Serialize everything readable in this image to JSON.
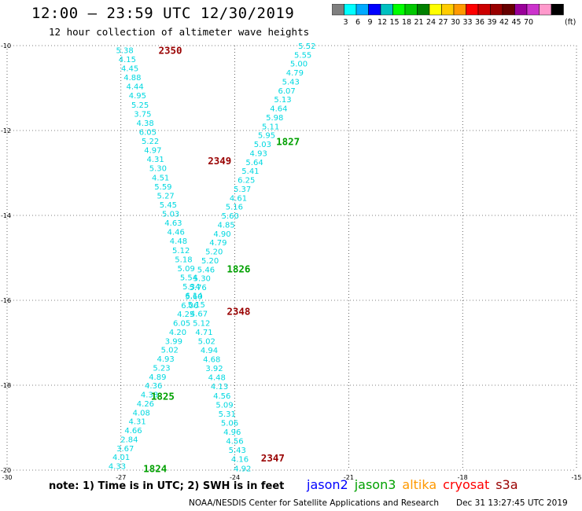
{
  "header": {
    "title": "12:00 – 23:59 UTC 12/30/2019",
    "subtitle": "12 hour collection of altimeter wave heights"
  },
  "colorbar": {
    "colors": [
      "#7f7f7f",
      "#00ffff",
      "#00aaff",
      "#0000ff",
      "#00c0c0",
      "#00ff00",
      "#00c800",
      "#008000",
      "#ffff00",
      "#ffcc00",
      "#ff9900",
      "#ff0000",
      "#cc0000",
      "#990000",
      "#660000",
      "#990099",
      "#cc33cc",
      "#ff99cc",
      "#000000"
    ],
    "labels": [
      "3",
      "6",
      "9",
      "12",
      "15",
      "18",
      "21",
      "24",
      "27",
      "30",
      "33",
      "36",
      "39",
      "42",
      "45",
      "70"
    ],
    "unit": "(ft)"
  },
  "note": "note: 1) Time is in UTC; 2) SWH is in feet",
  "legend": [
    {
      "name": "jason2",
      "color": "#0000ff"
    },
    {
      "name": "jason3",
      "color": "#00a000"
    },
    {
      "name": "altika",
      "color": "#ff9900"
    },
    {
      "name": "cryosat",
      "color": "#ff0000"
    },
    {
      "name": "s3a",
      "color": "#990000"
    }
  ],
  "footer": {
    "credit": "NOAA/NESDIS Center for Satellite Applications and Research",
    "timestamp": "Dec 31 13:27:45 UTC 2019"
  },
  "chart_data": {
    "type": "scatter",
    "xlim": [
      -30,
      -15
    ],
    "ylim": [
      -20,
      -10
    ],
    "xticks": [
      "-30",
      "-27",
      "-24",
      "-21",
      "-18",
      "-15"
    ],
    "yticks": [
      "-10",
      "-12",
      "-14",
      "-16",
      "-18",
      "-20"
    ],
    "grid": true,
    "times": [
      {
        "label": "2350",
        "x": -25.7,
        "y": -10.1,
        "color": "#990000"
      },
      {
        "label": "1827",
        "x": -22.6,
        "y": -12.25,
        "color": "#00a000"
      },
      {
        "label": "2349",
        "x": -24.4,
        "y": -12.7,
        "color": "#990000"
      },
      {
        "label": "1826",
        "x": -23.9,
        "y": -15.25,
        "color": "#00a000"
      },
      {
        "label": "2348",
        "x": -23.9,
        "y": -16.25,
        "color": "#990000"
      },
      {
        "label": "1825",
        "x": -25.9,
        "y": -18.25,
        "color": "#00a000"
      },
      {
        "label": "2347",
        "x": -23.0,
        "y": -19.7,
        "color": "#990000"
      },
      {
        "label": "1824",
        "x": -26.1,
        "y": -19.95,
        "color": "#00a000"
      }
    ],
    "tracks": [
      {
        "name": "s3a",
        "x_start": -26.9,
        "y_start": -10.1,
        "x_end": -23.8,
        "y_end": -19.95,
        "values": [
          "5.38",
          "4.15",
          "4.45",
          "4.88",
          "4.44",
          "4.95",
          "5.25",
          "3.75",
          "4.38",
          "6.05",
          "5.22",
          "4.97",
          "4.31",
          "5.30",
          "4.51",
          "5.59",
          "5.27",
          "5.45",
          "5.03",
          "4.63",
          "4.46",
          "4.48",
          "5.12",
          "5.18",
          "5.09",
          "5.54",
          "5.34",
          "6.14",
          "5.15",
          "4.67",
          "5.12",
          "4.71",
          "5.02",
          "4.94",
          "4.68",
          "3.92",
          "4.48",
          "4.13",
          "4.56",
          "5.09",
          "5.31",
          "5.06",
          "4.96",
          "4.56",
          "5.43",
          "4.16",
          "4.92"
        ],
        "value_colors": {
          "2.84": "#7f7f7f"
        }
      },
      {
        "name": "jason3",
        "x_start": -22.1,
        "y_start": -10.0,
        "x_end": -27.1,
        "y_end": -19.9,
        "values": [
          "5.52",
          "5.55",
          "5.00",
          "4.79",
          "5.43",
          "6.07",
          "5.13",
          "4.64",
          "5.98",
          "5.11",
          "5.95",
          "5.03",
          "4.93",
          "5.64",
          "5.41",
          "6.25",
          "5.37",
          "4.61",
          "5.16",
          "5.60",
          "4.85",
          "4.90",
          "4.79",
          "5.20",
          "5.20",
          "5.46",
          "5.30",
          "5.76",
          "5.60",
          "6.06",
          "4.25",
          "6.05",
          "4.20",
          "3.99",
          "5.02",
          "4.93",
          "5.23",
          "4.89",
          "4.36",
          "4.38",
          "4.26",
          "4.08",
          "4.31",
          "4.66",
          "2.84",
          "3.67",
          "4.01",
          "4.33"
        ]
      }
    ]
  }
}
